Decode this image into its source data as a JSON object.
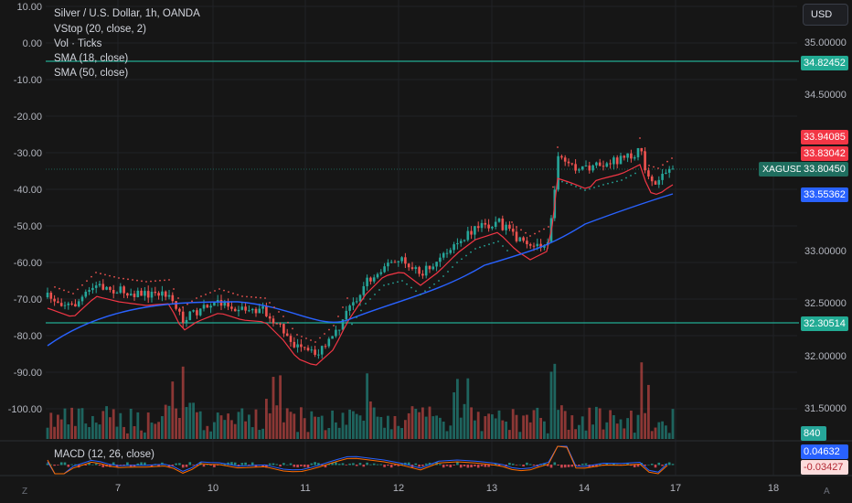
{
  "header": {
    "title": "Silver / U.S. Dollar, 1h, OANDA",
    "indicators": [
      "VStop (20, close, 2)",
      "Vol · Ticks",
      "SMA (18, close)",
      "SMA (50, close)"
    ],
    "macd_label": "MACD (12, 26, close)"
  },
  "currency_button": "USD",
  "symbol_tag": "XAGUSD",
  "left_axis": [
    "10.00",
    "0.00",
    "-10.00",
    "-20.00",
    "-30.00",
    "-40.00",
    "-50.00",
    "-60.00",
    "-70.00",
    "-80.00",
    "-90.00",
    "-100.00"
  ],
  "right_axis": [
    "35.00000",
    "34.50000",
    "33.00000",
    "32.50000",
    "32.00000",
    "31.50000"
  ],
  "x_axis": [
    "7",
    "10",
    "11",
    "12",
    "13",
    "14",
    "17",
    "18"
  ],
  "price_tags": {
    "hline_top": "34.82452",
    "vstop": "33.94085",
    "high": "33.83042",
    "last": "33.80450",
    "sma": "33.55362",
    "hline_bottom": "32.30514",
    "volume": "840",
    "macd": "0.04632",
    "signal": "-0.03427"
  },
  "corner_labels": {
    "bottom_left": "Z",
    "bottom_right": "A"
  },
  "colors": {
    "up": "#26a69a",
    "down": "#ef5350",
    "sma18": "#f23645",
    "sma50": "#2962ff",
    "hline": "#22ab94",
    "background": "#161616"
  }
}
